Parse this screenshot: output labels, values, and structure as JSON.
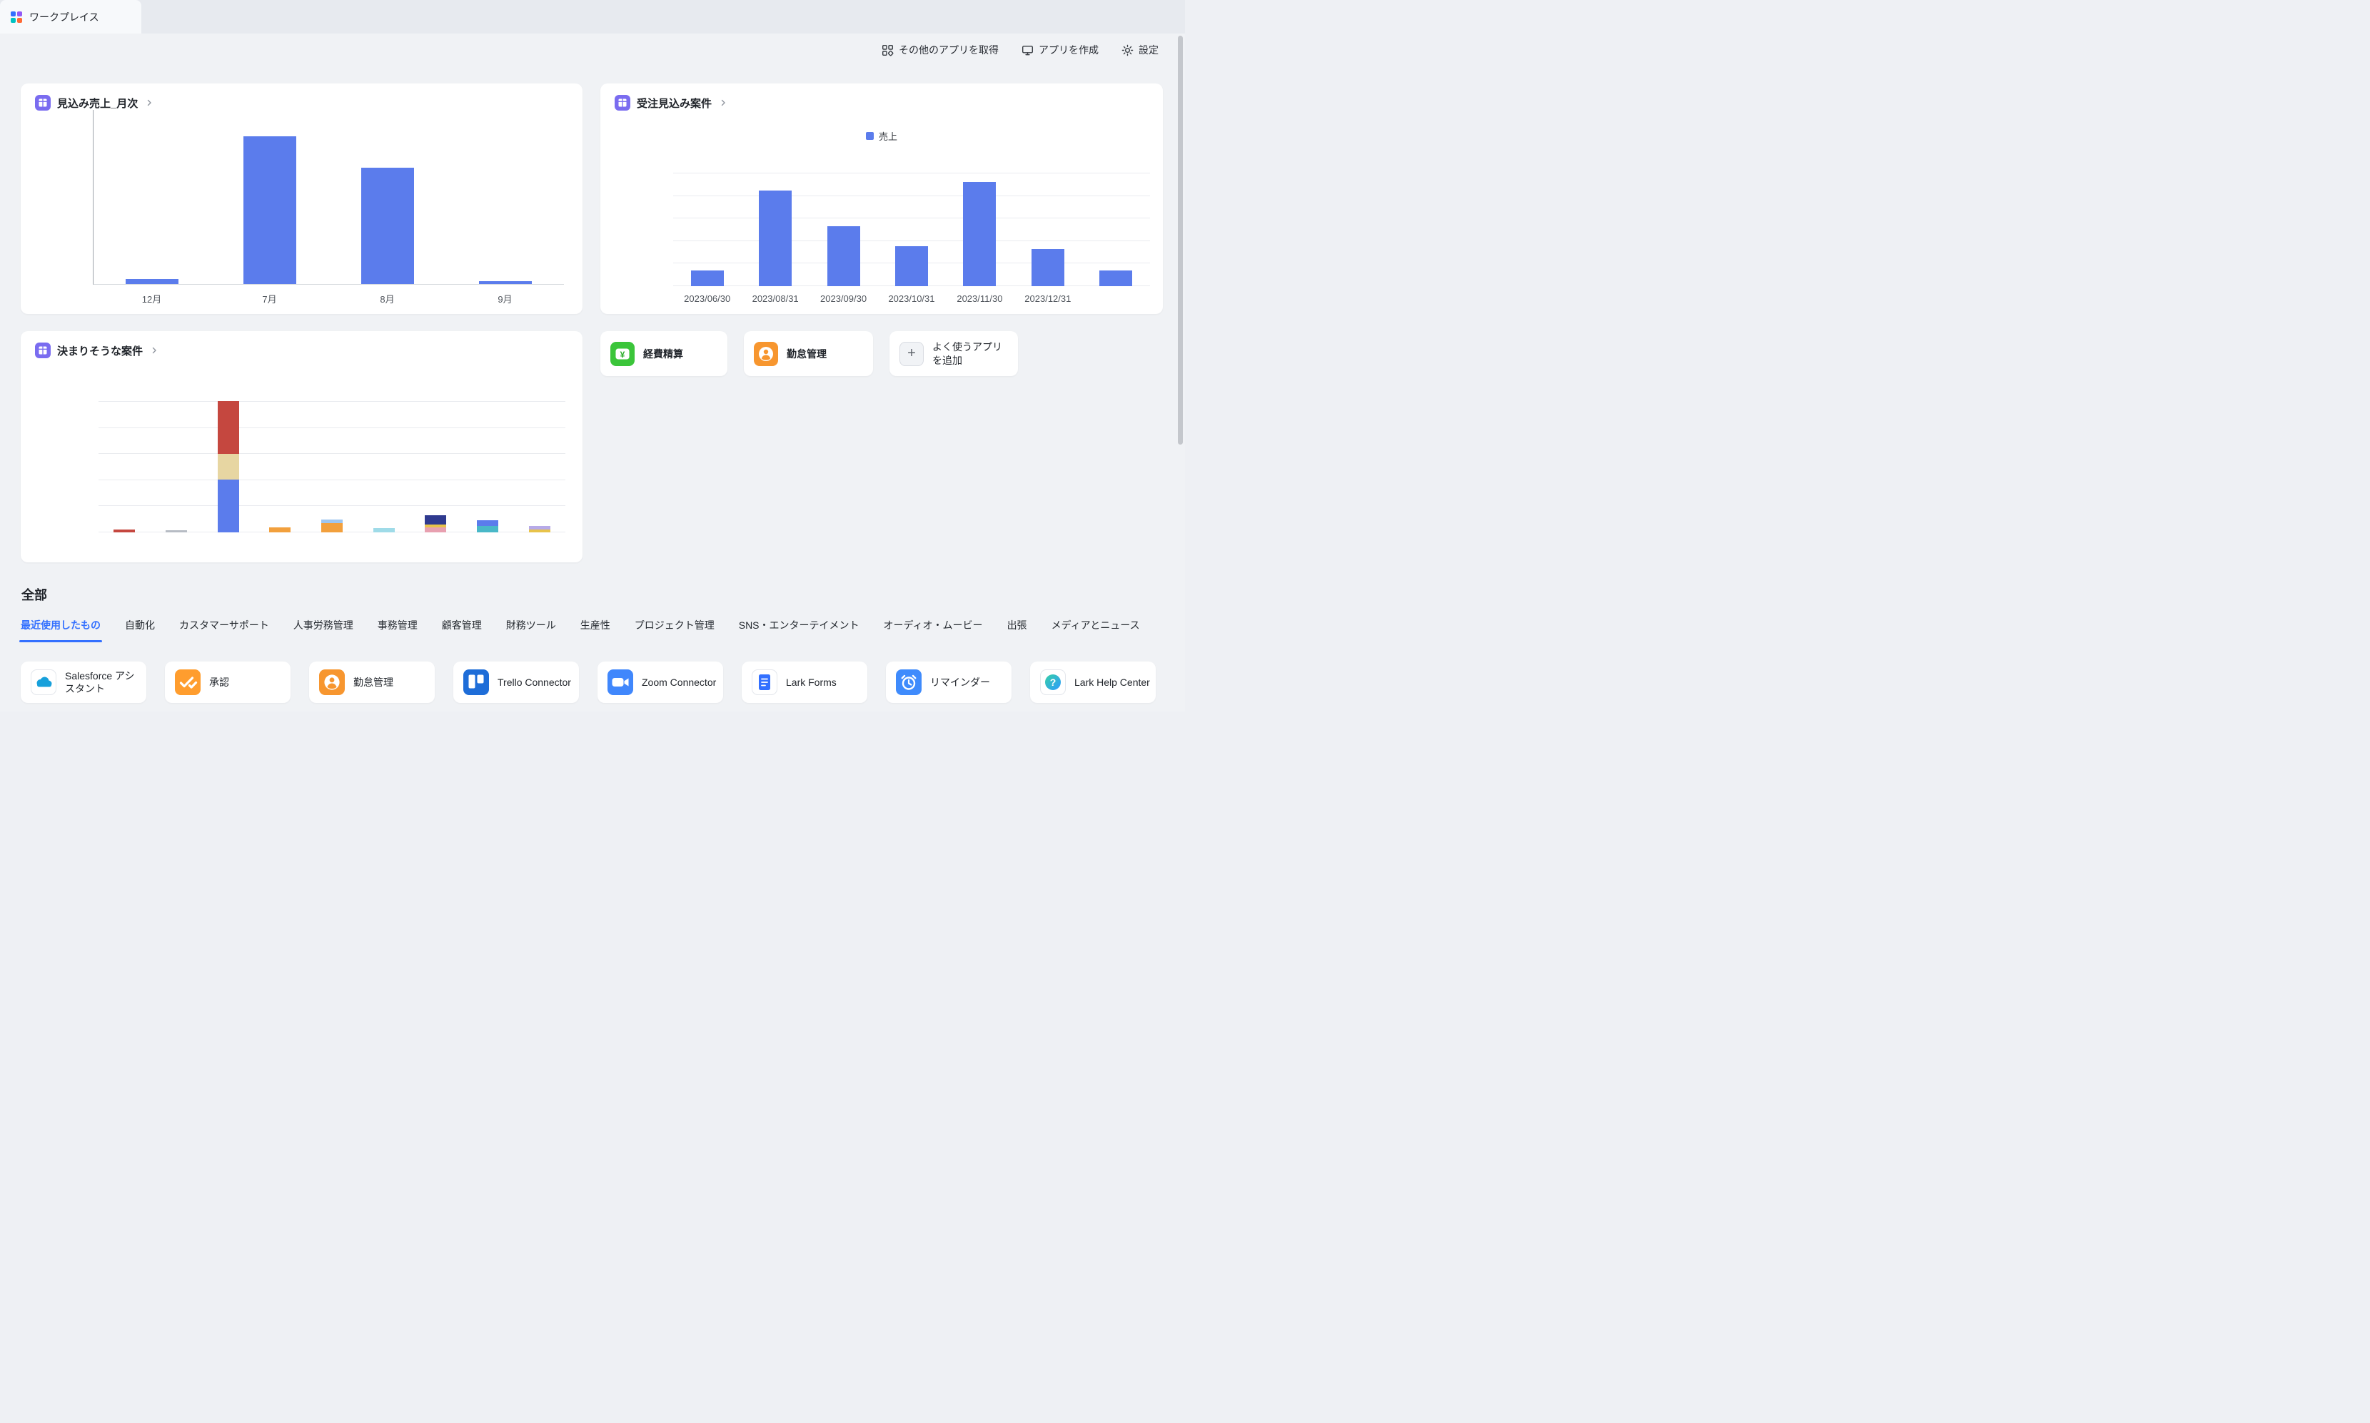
{
  "window": {
    "tab_title": "ワークプレイス"
  },
  "toolbar": {
    "items": [
      {
        "label": "その他のアプリを取得",
        "icon": "grid-apps-icon"
      },
      {
        "label": "アプリを作成",
        "icon": "monitor-icon"
      },
      {
        "label": "設定",
        "icon": "gear-icon"
      }
    ]
  },
  "shortcuts": {
    "expense": {
      "label": "経費精算",
      "icon": "expense-yen-icon",
      "color": "#3bc53a"
    },
    "attendance": {
      "label": "勤怠管理",
      "icon": "attendance-person-icon",
      "color": "#f7962f"
    },
    "add": {
      "label": "よく使うアプリを追加",
      "icon": "plus-icon"
    }
  },
  "all_section": {
    "heading": "全部",
    "tabs": [
      {
        "label": "最近使用したもの",
        "active": true
      },
      {
        "label": "自動化"
      },
      {
        "label": "カスタマーサポート"
      },
      {
        "label": "人事労務管理"
      },
      {
        "label": "事務管理"
      },
      {
        "label": "顧客管理"
      },
      {
        "label": "財務ツール"
      },
      {
        "label": "生産性"
      },
      {
        "label": "プロジェクト管理"
      },
      {
        "label": "SNS・エンターテイメント"
      },
      {
        "label": "オーディオ・ムービー"
      },
      {
        "label": "出張"
      },
      {
        "label": "メディアとニュース"
      }
    ]
  },
  "apps": [
    {
      "name": "Salesforce アシスタント",
      "icon": "salesforce-cloud-icon"
    },
    {
      "name": "承認",
      "icon": "approval-check-icon"
    },
    {
      "name": "勤怠管理",
      "icon": "attendance-person-icon"
    },
    {
      "name": "Trello Connector",
      "icon": "trello-icon"
    },
    {
      "name": "Zoom Connector",
      "icon": "zoom-camera-icon"
    },
    {
      "name": "Lark Forms",
      "icon": "lark-forms-icon"
    },
    {
      "name": "リマインダー",
      "icon": "reminder-clock-icon"
    },
    {
      "name": "Lark Help Center",
      "icon": "help-center-icon"
    }
  ],
  "colors": {
    "accent_blue": "#3370ff",
    "bar_blue": "#5b7cec",
    "card_icon_purple": "#7a6cf0"
  },
  "chart_data": [
    {
      "type": "bar",
      "title": "見込み売上_月次",
      "xlabel": "",
      "ylabel": "",
      "gridlines": 0,
      "legend_position": "none",
      "value_scale": "percent_of_plot_height",
      "ylim": [
        0,
        100
      ],
      "bars": [
        {
          "label": "12月",
          "segments": [
            {
              "value": 3,
              "color": "#5b7cec"
            }
          ]
        },
        {
          "label": "7月",
          "segments": [
            {
              "value": 85,
              "color": "#5b7cec"
            }
          ]
        },
        {
          "label": "8月",
          "segments": [
            {
              "value": 67,
              "color": "#5b7cec"
            }
          ]
        },
        {
          "label": "9月",
          "segments": [
            {
              "value": 1.5,
              "color": "#5b7cec"
            }
          ]
        }
      ]
    },
    {
      "type": "bar",
      "title": "受注見込み案件",
      "legend": "売上",
      "legend_color": "#5b7cec",
      "legend_position": "top-center",
      "gridlines": 6,
      "value_scale": "percent_of_plot_height",
      "ylim": [
        0,
        100
      ],
      "bars": [
        {
          "label": "2023/06/30",
          "segments": [
            {
              "value": 14,
              "color": "#5b7cec"
            }
          ]
        },
        {
          "label": "2023/08/31",
          "segments": [
            {
              "value": 84,
              "color": "#5b7cec"
            }
          ]
        },
        {
          "label": "2023/09/30",
          "segments": [
            {
              "value": 53,
              "color": "#5b7cec"
            }
          ]
        },
        {
          "label": "2023/10/31",
          "segments": [
            {
              "value": 35,
              "color": "#5b7cec"
            }
          ]
        },
        {
          "label": "2023/11/30",
          "segments": [
            {
              "value": 92,
              "color": "#5b7cec"
            }
          ]
        },
        {
          "label": "2023/12/31",
          "segments": [
            {
              "value": 33,
              "color": "#5b7cec"
            }
          ]
        },
        {
          "label": "",
          "segments": [
            {
              "value": 14,
              "color": "#5b7cec"
            }
          ]
        }
      ]
    },
    {
      "type": "bar",
      "stacked": true,
      "title": "決まりそうな案件",
      "gridlines": 6,
      "legend_position": "none",
      "value_scale": "percent_of_plot_height",
      "ylim": [
        0,
        100
      ],
      "bars": [
        {
          "label": "",
          "segments": [
            {
              "value": 2,
              "color": "#c5473f"
            }
          ]
        },
        {
          "label": "",
          "segments": [
            {
              "value": 1.5,
              "color": "#b7bcc4"
            }
          ]
        },
        {
          "label": "",
          "segments": [
            {
              "value": 40,
              "color": "#5b7cec"
            },
            {
              "value": 20,
              "color": "#e7d6a2"
            },
            {
              "value": 40,
              "color": "#c5473f"
            }
          ]
        },
        {
          "label": "",
          "segments": [
            {
              "value": 4,
              "color": "#f2a03d"
            }
          ]
        },
        {
          "label": "",
          "segments": [
            {
              "value": 7,
              "color": "#f2a03d"
            },
            {
              "value": 3,
              "color": "#9ec6f0"
            }
          ]
        },
        {
          "label": "",
          "segments": [
            {
              "value": 3,
              "color": "#9fdbe8"
            }
          ]
        },
        {
          "label": "",
          "segments": [
            {
              "value": 4,
              "color": "#e8a0b0"
            },
            {
              "value": 2,
              "color": "#e8c34a"
            },
            {
              "value": 7,
              "color": "#2f3a8f"
            }
          ]
        },
        {
          "label": "",
          "segments": [
            {
              "value": 5,
              "color": "#49b8c8"
            },
            {
              "value": 4,
              "color": "#5b7cec"
            }
          ]
        },
        {
          "label": "",
          "segments": [
            {
              "value": 2,
              "color": "#e8c34a"
            },
            {
              "value": 3,
              "color": "#b7aae8"
            }
          ]
        }
      ]
    }
  ]
}
